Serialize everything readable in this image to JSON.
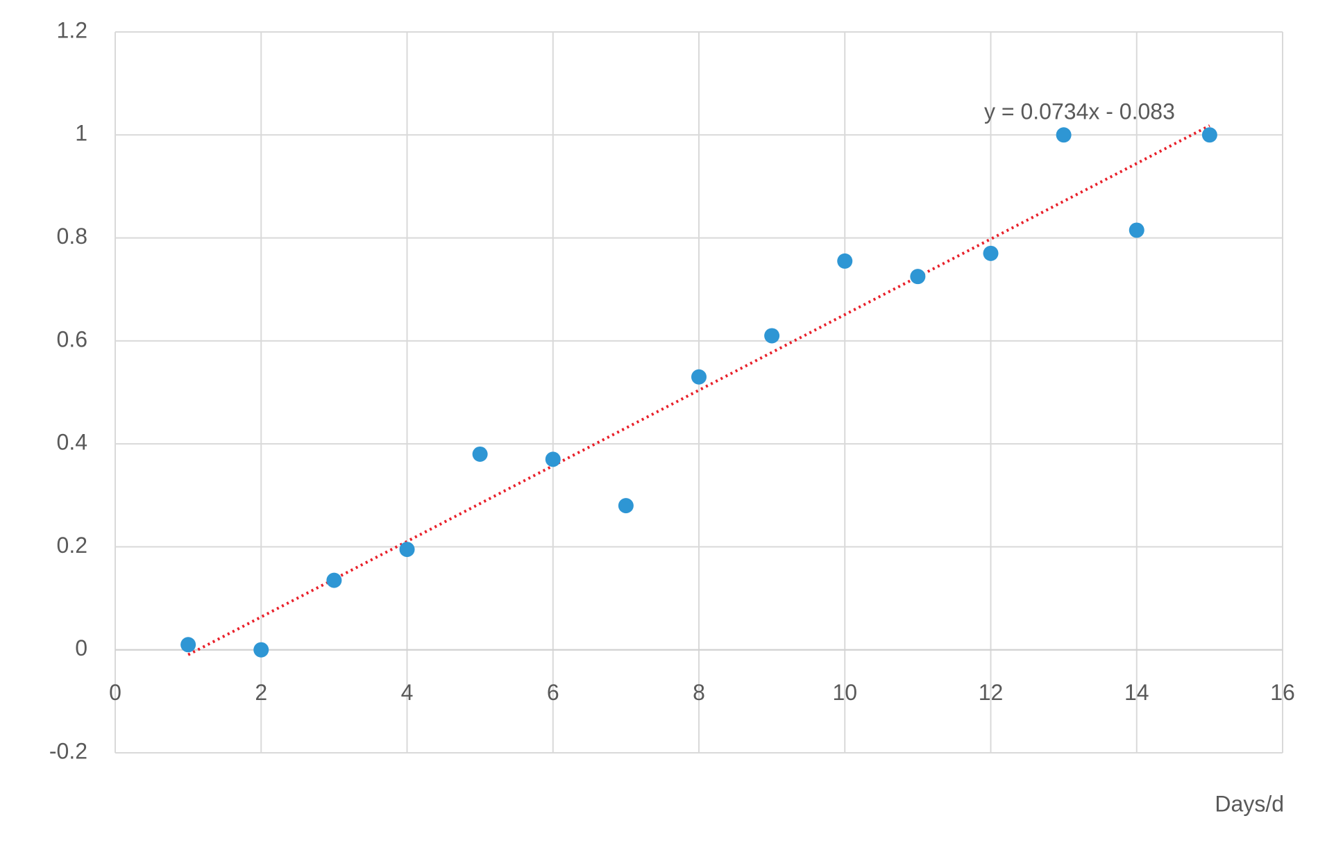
{
  "chart_data": {
    "type": "line",
    "x_label": "Days/d",
    "x": [
      1,
      2,
      3,
      4,
      5,
      6,
      7,
      8,
      9,
      10,
      11,
      12,
      13,
      14,
      15
    ],
    "series": [
      {
        "color": "#2e96d4",
        "values": [
          0.01,
          0.0,
          0.135,
          0.195,
          0.38,
          0.37,
          0.28,
          0.53,
          0.61,
          0.755,
          0.725,
          0.77,
          1.0,
          0.815,
          1.0
        ]
      }
    ],
    "trendline": {
      "slope": 0.0734,
      "intercept": -0.083,
      "label": "y = 0.0734x - 0.083",
      "color": "#e8202a"
    },
    "xlim": [
      0,
      16
    ],
    "xticks": [
      0,
      2,
      4,
      6,
      8,
      10,
      12,
      14,
      16
    ],
    "ylim": [
      -0.2,
      1.2
    ],
    "yticks": [
      -0.2,
      0,
      0.2,
      0.4,
      0.6,
      0.8,
      1,
      1.2
    ],
    "grid": true
  }
}
